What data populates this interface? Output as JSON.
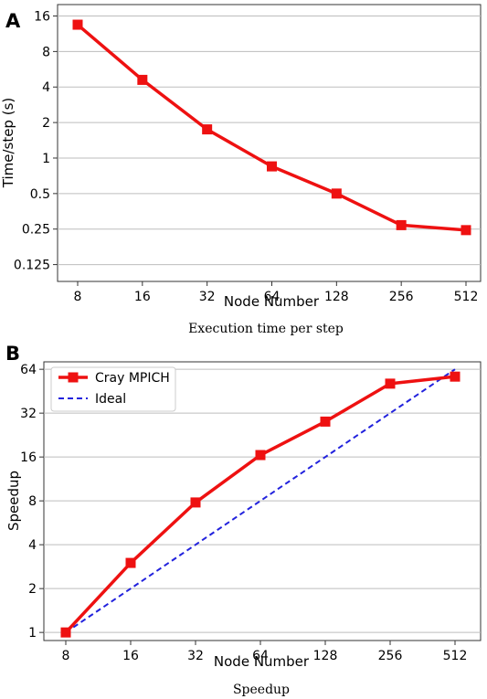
{
  "figure": {
    "panel_a_letter": "A",
    "panel_b_letter": "B",
    "caption_a": "Execution time per step",
    "caption_b": "Speedup"
  },
  "chart_data": [
    {
      "type": "line",
      "xscale": "log2",
      "yscale": "log2",
      "x": [
        8,
        16,
        32,
        64,
        128,
        256,
        512
      ],
      "x_tick_labels": [
        "8",
        "16",
        "32",
        "64",
        "128",
        "256",
        "512"
      ],
      "xlabel": "Node Number",
      "ylabel": "Time/step (s)",
      "y_ticks": [
        0.125,
        0.25,
        0.5,
        1,
        2,
        4,
        8,
        16
      ],
      "y_tick_labels": [
        "0.125",
        "0.25",
        "0.5",
        "1",
        "2",
        "4",
        "8",
        "16"
      ],
      "ylim": [
        0.09,
        20
      ],
      "grid": "horizontal",
      "series": [
        {
          "values": [
            13.5,
            4.6,
            1.75,
            0.85,
            0.5,
            0.27,
            0.245
          ],
          "color": "#ee1111",
          "marker": "square"
        }
      ]
    },
    {
      "type": "line",
      "xscale": "log2",
      "yscale": "log2",
      "x": [
        8,
        16,
        32,
        64,
        128,
        256,
        512
      ],
      "x_tick_labels": [
        "8",
        "16",
        "32",
        "64",
        "128",
        "256",
        "512"
      ],
      "xlabel": "Node Number",
      "ylabel": "Speedup",
      "y_ticks": [
        1,
        2,
        4,
        8,
        16,
        32,
        64
      ],
      "y_tick_labels": [
        "1",
        "2",
        "4",
        "8",
        "16",
        "32",
        "64"
      ],
      "ylim": [
        0.88,
        72
      ],
      "grid": "horizontal",
      "legend": "top-left",
      "series": [
        {
          "name": "Cray MPICH",
          "values": [
            1,
            3.0,
            7.8,
            16.5,
            28,
            51,
            57
          ],
          "color": "#ee1111",
          "marker": "square",
          "style": "solid"
        },
        {
          "name": "Ideal",
          "values": [
            1,
            2,
            4,
            8,
            16,
            32,
            64
          ],
          "color": "#2222dd",
          "style": "dashed"
        }
      ]
    }
  ]
}
